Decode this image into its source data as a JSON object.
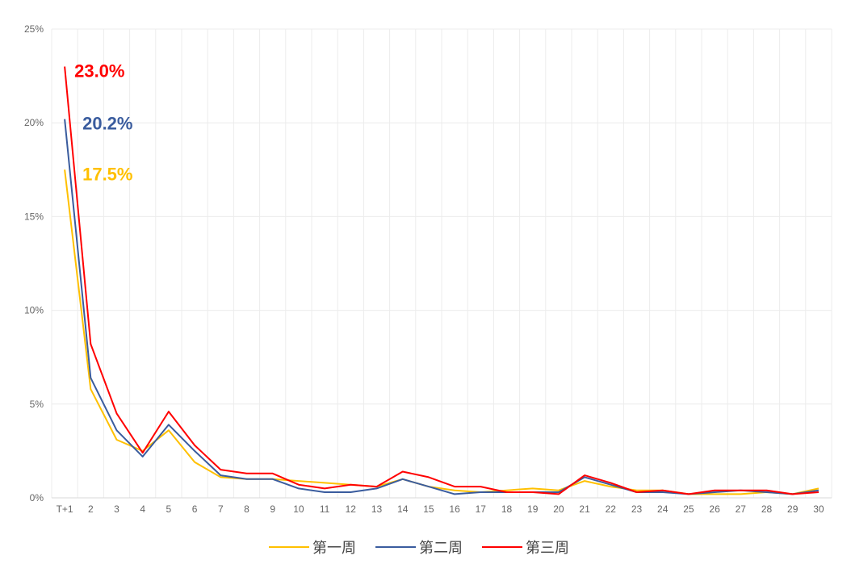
{
  "chart_data": {
    "type": "line",
    "categories": [
      "T+1",
      "2",
      "3",
      "4",
      "5",
      "6",
      "7",
      "8",
      "9",
      "10",
      "11",
      "12",
      "13",
      "14",
      "15",
      "16",
      "17",
      "18",
      "19",
      "20",
      "21",
      "22",
      "23",
      "24",
      "25",
      "26",
      "27",
      "28",
      "29",
      "30"
    ],
    "y_ticks": [
      "0%",
      "5%",
      "10%",
      "15%",
      "20%",
      "25%"
    ],
    "ylim": [
      0,
      25
    ],
    "grid": true,
    "legend_position": "bottom-center",
    "series": [
      {
        "name": "第一周",
        "color": "#FFC000",
        "values": [
          17.5,
          5.8,
          3.1,
          2.5,
          3.6,
          1.9,
          1.1,
          1.0,
          1.0,
          0.9,
          0.8,
          0.7,
          0.6,
          1.0,
          0.6,
          0.4,
          0.3,
          0.4,
          0.5,
          0.4,
          0.9,
          0.6,
          0.4,
          0.4,
          0.2,
          0.2,
          0.2,
          0.3,
          0.2,
          0.5
        ]
      },
      {
        "name": "第二周",
        "color": "#3A5C9E",
        "values": [
          20.2,
          6.4,
          3.6,
          2.2,
          3.9,
          2.5,
          1.2,
          1.0,
          1.0,
          0.5,
          0.3,
          0.3,
          0.5,
          1.0,
          0.6,
          0.2,
          0.3,
          0.3,
          0.3,
          0.3,
          1.1,
          0.7,
          0.3,
          0.3,
          0.2,
          0.3,
          0.4,
          0.3,
          0.2,
          0.4
        ]
      },
      {
        "name": "第三周",
        "color": "#FF0000",
        "values": [
          23.0,
          8.2,
          4.5,
          2.4,
          4.6,
          2.8,
          1.5,
          1.3,
          1.3,
          0.7,
          0.5,
          0.7,
          0.6,
          1.4,
          1.1,
          0.6,
          0.6,
          0.3,
          0.3,
          0.2,
          1.2,
          0.8,
          0.3,
          0.4,
          0.2,
          0.4,
          0.4,
          0.4,
          0.2,
          0.3
        ]
      }
    ],
    "annotations": [
      {
        "text": "23.0%",
        "series": 2,
        "color": "#FF0000"
      },
      {
        "text": "20.2%",
        "series": 1,
        "color": "#3A5C9E"
      },
      {
        "text": "17.5%",
        "series": 0,
        "color": "#FFC000"
      }
    ]
  }
}
